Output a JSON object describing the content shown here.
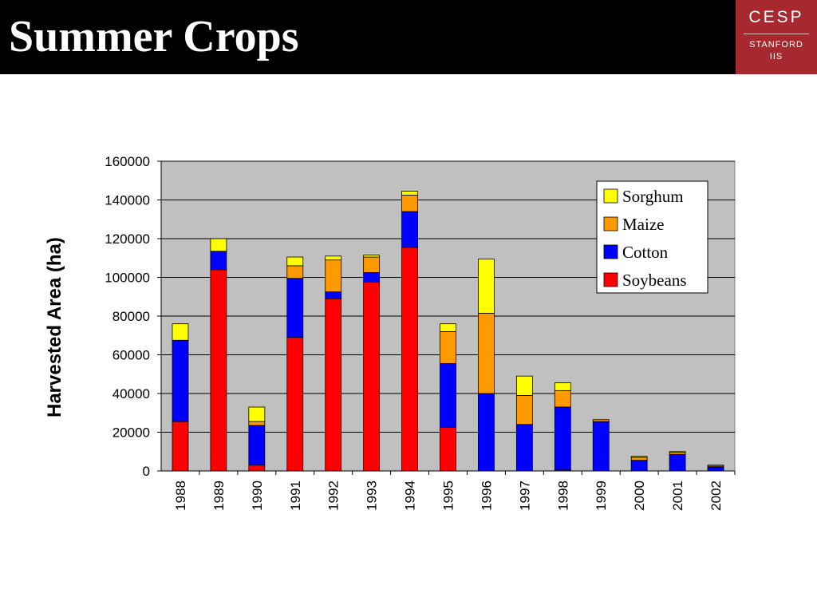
{
  "slide": {
    "title": "Summer Crops",
    "logo": {
      "main": "CESP",
      "sub1": "STANFORD",
      "sub2": "IIS"
    }
  },
  "chart_data": {
    "type": "bar",
    "stacked": true,
    "categories": [
      "1988",
      "1989",
      "1990",
      "1991",
      "1992",
      "1993",
      "1994",
      "1995",
      "1996",
      "1997",
      "1998",
      "1999",
      "2000",
      "2001",
      "2002"
    ],
    "series": [
      {
        "name": "Soybeans",
        "color": "#ff0000",
        "values": [
          25500,
          104000,
          3000,
          69000,
          89000,
          97500,
          115500,
          22500,
          0,
          0,
          500,
          0,
          0,
          0,
          0
        ]
      },
      {
        "name": "Cotton",
        "color": "#0000ff",
        "values": [
          42000,
          9500,
          20500,
          30500,
          3500,
          5000,
          18500,
          33000,
          40000,
          24000,
          32500,
          25500,
          5500,
          8500,
          2000
        ]
      },
      {
        "name": "Maize",
        "color": "#ff9900",
        "values": [
          0,
          0,
          2000,
          6500,
          16500,
          8000,
          8500,
          16500,
          41500,
          15000,
          8500,
          1000,
          1500,
          1000,
          500
        ]
      },
      {
        "name": "Sorghum",
        "color": "#ffff00",
        "values": [
          8500,
          6500,
          7500,
          4500,
          2000,
          1000,
          2000,
          4000,
          28000,
          10000,
          4000,
          0,
          500,
          500,
          500
        ]
      }
    ],
    "ylabel": "Harvested Area (ha)",
    "ylim": [
      0,
      160000
    ],
    "yticks": [
      "0",
      "20000",
      "40000",
      "60000",
      "80000",
      "100000",
      "120000",
      "140000",
      "160000"
    ],
    "grid": true,
    "legend_placement": "top-right",
    "plot_background": "#c0c0c0"
  }
}
